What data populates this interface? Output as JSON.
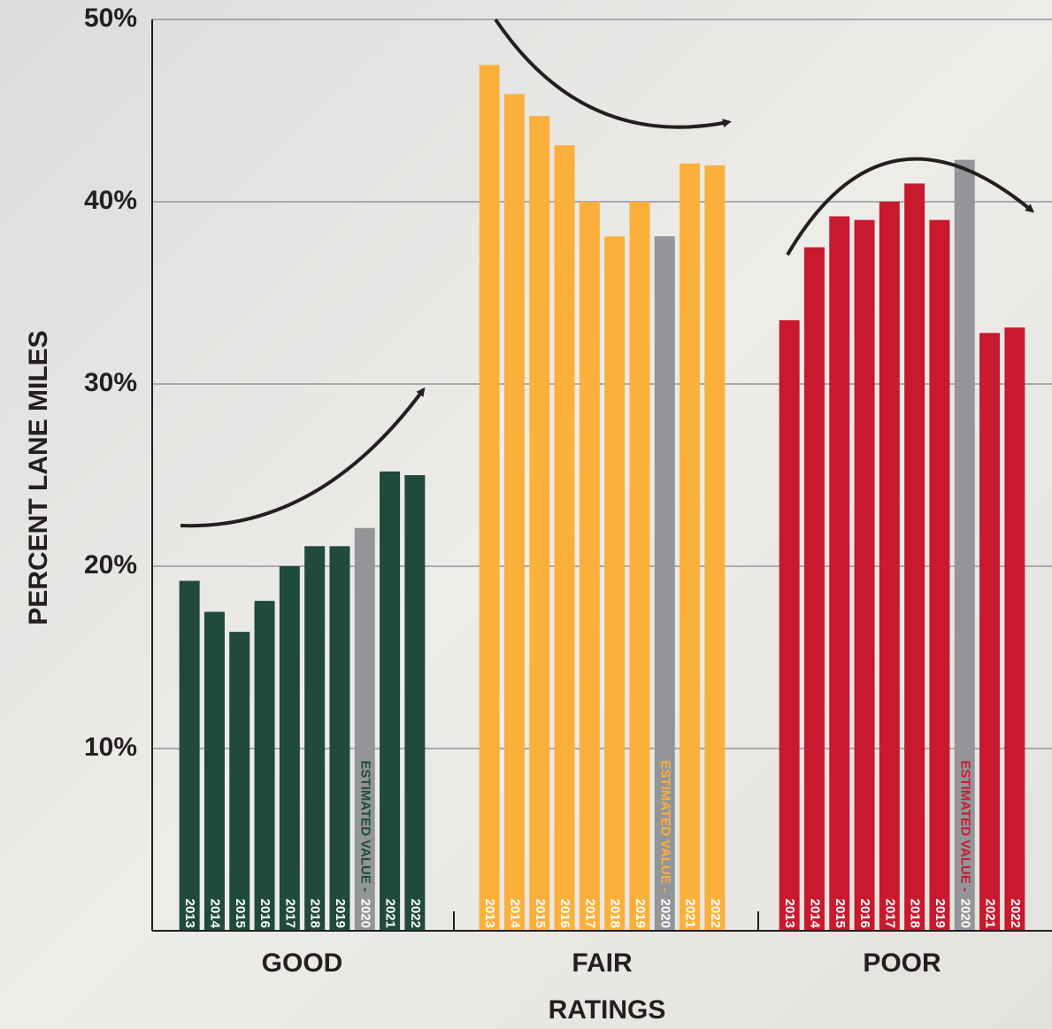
{
  "chart_data": {
    "type": "bar",
    "y_axis_label": "PERCENT LANE MILES",
    "x_axis_label": "RATINGS",
    "annotation": "ESTIMATED VALUE -",
    "categories": [
      "GOOD",
      "FAIR",
      "POOR"
    ],
    "series": [
      {
        "name": "2013",
        "colors": [
          "#1f4a3c",
          "#fbb03b",
          "#c8192e"
        ],
        "values": [
          19.2,
          47.5,
          33.5
        ]
      },
      {
        "name": "2014",
        "colors": [
          "#1f4a3c",
          "#fbb03b",
          "#c8192e"
        ],
        "values": [
          17.5,
          45.9,
          37.5
        ]
      },
      {
        "name": "2015",
        "colors": [
          "#1f4a3c",
          "#fbb03b",
          "#c8192e"
        ],
        "values": [
          16.4,
          44.7,
          39.2
        ]
      },
      {
        "name": "2016",
        "colors": [
          "#1f4a3c",
          "#fbb03b",
          "#c8192e"
        ],
        "values": [
          18.1,
          43.1,
          39.0
        ]
      },
      {
        "name": "2017",
        "colors": [
          "#1f4a3c",
          "#fbb03b",
          "#c8192e"
        ],
        "values": [
          20.0,
          40.0,
          40.0
        ]
      },
      {
        "name": "2018",
        "colors": [
          "#1f4a3c",
          "#fbb03b",
          "#c8192e"
        ],
        "values": [
          21.1,
          38.1,
          41.0
        ]
      },
      {
        "name": "2019",
        "colors": [
          "#1f4a3c",
          "#fbb03b",
          "#c8192e"
        ],
        "values": [
          21.1,
          40.0,
          39.0
        ]
      },
      {
        "name": "2020",
        "colors": [
          "#939598",
          "#939598",
          "#939598"
        ],
        "values": [
          22.1,
          38.1,
          42.3
        ]
      },
      {
        "name": "2021",
        "colors": [
          "#1f4a3c",
          "#fbb03b",
          "#c8192e"
        ],
        "values": [
          25.2,
          42.1,
          32.8
        ]
      },
      {
        "name": "2022",
        "colors": [
          "#1f4a3c",
          "#fbb03b",
          "#c8192e"
        ],
        "values": [
          25.0,
          42.0,
          33.1
        ]
      }
    ],
    "ylim": [
      0,
      50
    ],
    "yticks": [
      {
        "value": 10,
        "label": "10%"
      },
      {
        "value": 20,
        "label": "20%"
      },
      {
        "value": 30,
        "label": "30%"
      },
      {
        "value": 40,
        "label": "40%"
      },
      {
        "value": 50,
        "label": "50%"
      }
    ],
    "grid": true
  }
}
